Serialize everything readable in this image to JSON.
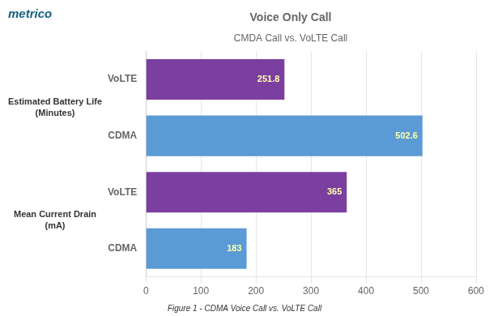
{
  "chart_data": {
    "type": "bar",
    "orientation": "horizontal",
    "title": "Voice Only Call",
    "subtitle": "CMDA Call vs. VoLTE Call",
    "categories": [
      "VoLTE",
      "CDMA",
      "VoLTE",
      "CDMA"
    ],
    "values": [
      251.8,
      502.6,
      365,
      183
    ],
    "colors": [
      "#7B3FA0",
      "#5B9BD5",
      "#7B3FA0",
      "#5B9BD5"
    ],
    "xlim": [
      0,
      600
    ],
    "xticks": [
      0,
      100,
      200,
      300,
      400,
      500,
      600
    ],
    "grid": true,
    "data_labels": true,
    "annotations": [
      "metrico",
      "Estimated Battery Life\n(Minutes)",
      "Mean Current Drain\n(mA)",
      "Figure 1 - CDMA Voice Call vs. VoLTE Call"
    ]
  }
}
